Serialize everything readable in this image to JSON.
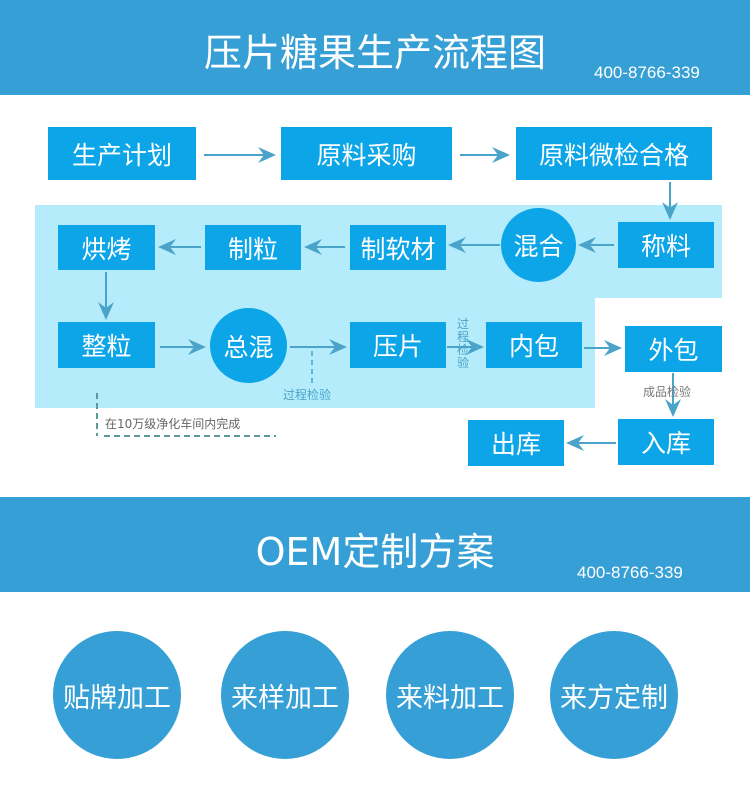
{
  "header": {
    "title": "压片糖果生产流程图",
    "phone": "400-8766-339"
  },
  "flow": {
    "steps": {
      "plan": "生产计划",
      "purchase": "原料采购",
      "inspect": "原料微检合格",
      "weigh": "称料",
      "mix": "混合",
      "soft": "制软材",
      "granulate": "制粒",
      "bake": "烘烤",
      "sizing": "整粒",
      "total_mix": "总混",
      "press": "压片",
      "inner_pack": "内包",
      "outer_pack": "外包",
      "storage_in": "入库",
      "storage_out": "出库"
    },
    "notes": {
      "process_check_1": "过程检验",
      "process_check_2": "过程检验",
      "final_check": "成品检验",
      "cleanroom": "在10万级净化车间内完成"
    }
  },
  "oem": {
    "title": "OEM定制方案",
    "phone": "400-8766-339",
    "options": [
      "贴牌加工",
      "来样加工",
      "来料加工",
      "来方定制"
    ]
  },
  "colors": {
    "band": "#359fd6",
    "box": "#0ba5e8",
    "light_area": "#b4ecfb",
    "arrow": "#4aa3c8"
  }
}
